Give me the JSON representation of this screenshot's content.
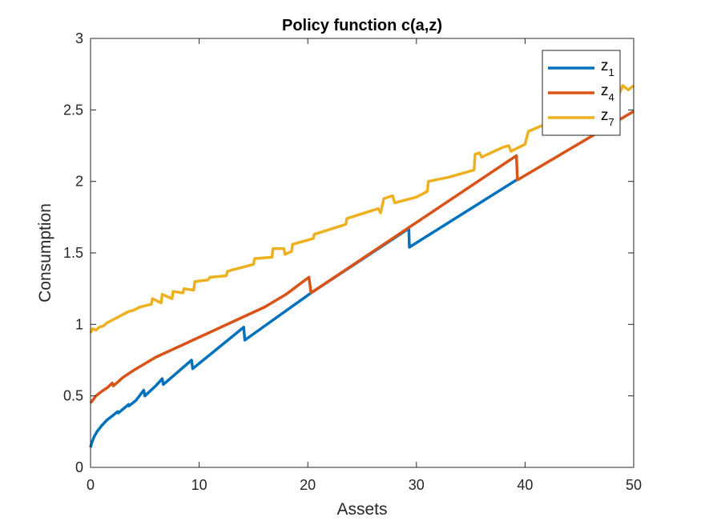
{
  "chart_data": {
    "type": "line",
    "title": "Policy function c(a,z)",
    "xlabel": "Assets",
    "ylabel": "Consumption",
    "xlim": [
      0,
      50
    ],
    "ylim": [
      0,
      3
    ],
    "xticks": [
      "0",
      "10",
      "20",
      "30",
      "40",
      "50"
    ],
    "yticks": [
      "0",
      "0.5",
      "1",
      "1.5",
      "2",
      "2.5",
      "3"
    ],
    "grid": false,
    "legend_position": "top-right",
    "series": [
      {
        "name": "z1",
        "legend_base": "z",
        "legend_sub": "1",
        "color": "#0072BD",
        "points": [
          [
            0,
            0.14
          ],
          [
            0.1,
            0.17
          ],
          [
            0.3,
            0.21
          ],
          [
            0.6,
            0.25
          ],
          [
            1.0,
            0.29
          ],
          [
            1.5,
            0.33
          ],
          [
            2.0,
            0.36
          ],
          [
            2.5,
            0.39
          ],
          [
            2.55,
            0.38
          ],
          [
            3.5,
            0.44
          ],
          [
            3.55,
            0.43
          ],
          [
            4.2,
            0.47
          ],
          [
            4.9,
            0.54
          ],
          [
            5.0,
            0.5
          ],
          [
            6.0,
            0.57
          ],
          [
            6.6,
            0.62
          ],
          [
            6.7,
            0.58
          ],
          [
            9.3,
            0.75
          ],
          [
            9.4,
            0.69
          ],
          [
            14.1,
            0.98
          ],
          [
            14.2,
            0.89
          ],
          [
            20.3,
            1.22
          ],
          [
            29.3,
            1.67
          ],
          [
            29.35,
            1.54
          ],
          [
            39.2,
            2.01
          ]
        ]
      },
      {
        "name": "z4",
        "legend_base": "z",
        "legend_sub": "4",
        "color": "#D95319",
        "points": [
          [
            0,
            0.45
          ],
          [
            0.5,
            0.5
          ],
          [
            1.0,
            0.53
          ],
          [
            1.6,
            0.56
          ],
          [
            2.0,
            0.59
          ],
          [
            2.1,
            0.57
          ],
          [
            3.0,
            0.63
          ],
          [
            4.0,
            0.68
          ],
          [
            6.0,
            0.77
          ],
          [
            8.0,
            0.84
          ],
          [
            10.0,
            0.91
          ],
          [
            12.0,
            0.98
          ],
          [
            14.0,
            1.05
          ],
          [
            16.0,
            1.12
          ],
          [
            18.0,
            1.21
          ],
          [
            20.1,
            1.33
          ],
          [
            20.3,
            1.22
          ],
          [
            39.2,
            2.18
          ],
          [
            39.3,
            2.01
          ],
          [
            50.0,
            2.49
          ]
        ]
      },
      {
        "name": "z7",
        "legend_base": "z",
        "legend_sub": "7",
        "color": "#EDB120",
        "points": [
          [
            0,
            0.94
          ],
          [
            0.2,
            0.97
          ],
          [
            0.5,
            0.96
          ],
          [
            0.8,
            0.98
          ],
          [
            1.2,
            0.99
          ],
          [
            1.5,
            1.01
          ],
          [
            2.0,
            1.03
          ],
          [
            2.5,
            1.05
          ],
          [
            3.0,
            1.07
          ],
          [
            3.5,
            1.09
          ],
          [
            4.0,
            1.1
          ],
          [
            4.5,
            1.12
          ],
          [
            5.0,
            1.13
          ],
          [
            5.6,
            1.14
          ],
          [
            5.7,
            1.18
          ],
          [
            6.5,
            1.15
          ],
          [
            6.6,
            1.21
          ],
          [
            7.5,
            1.18
          ],
          [
            7.6,
            1.23
          ],
          [
            8.5,
            1.22
          ],
          [
            8.6,
            1.25
          ],
          [
            9.5,
            1.24
          ],
          [
            9.6,
            1.3
          ],
          [
            10.8,
            1.31
          ],
          [
            11.0,
            1.33
          ],
          [
            12.5,
            1.34
          ],
          [
            12.6,
            1.37
          ],
          [
            13.0,
            1.38
          ],
          [
            14.0,
            1.4
          ],
          [
            15.0,
            1.42
          ],
          [
            15.1,
            1.46
          ],
          [
            16.7,
            1.47
          ],
          [
            16.8,
            1.53
          ],
          [
            17.8,
            1.53
          ],
          [
            17.9,
            1.49
          ],
          [
            18.5,
            1.51
          ],
          [
            18.6,
            1.56
          ],
          [
            20.5,
            1.6
          ],
          [
            20.6,
            1.63
          ],
          [
            23.5,
            1.7
          ],
          [
            23.6,
            1.74
          ],
          [
            26.5,
            1.81
          ],
          [
            26.7,
            1.78
          ],
          [
            27.0,
            1.88
          ],
          [
            27.8,
            1.9
          ],
          [
            28.0,
            1.85
          ],
          [
            30.0,
            1.89
          ],
          [
            31.0,
            1.93
          ],
          [
            31.1,
            2.0
          ],
          [
            33.0,
            2.03
          ],
          [
            35.3,
            2.08
          ],
          [
            35.4,
            2.19
          ],
          [
            35.8,
            2.2
          ],
          [
            36.0,
            2.17
          ],
          [
            38.0,
            2.24
          ],
          [
            38.5,
            2.25
          ],
          [
            38.7,
            2.21
          ],
          [
            40.0,
            2.26
          ],
          [
            40.3,
            2.35
          ],
          [
            42.5,
            2.42
          ],
          [
            42.6,
            2.38
          ],
          [
            47.3,
            2.56
          ],
          [
            47.4,
            2.53
          ],
          [
            48.6,
            2.6
          ],
          [
            49.0,
            2.67
          ],
          [
            49.5,
            2.64
          ],
          [
            50.0,
            2.67
          ]
        ]
      }
    ]
  }
}
